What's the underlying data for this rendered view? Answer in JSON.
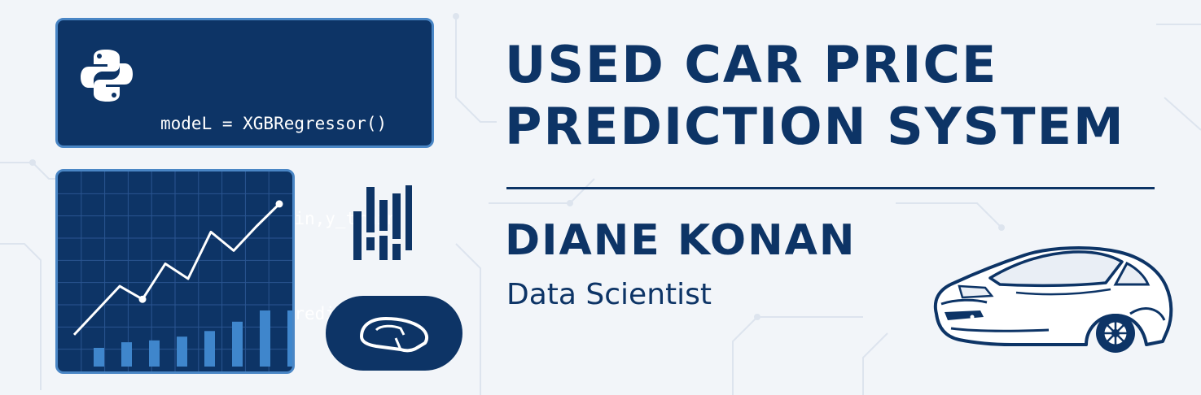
{
  "code": {
    "lines": [
      "modeL = XGBRegressor()",
      "xgb.fit(X_train,y_train",
      "y_pred =xgb.predict(X_t"
    ]
  },
  "title": {
    "line1": "USED CAR PRICE",
    "line2": "PREDICTION SYSTEM"
  },
  "author": {
    "name": "DIANE KONAN",
    "role": "Data Scientist"
  },
  "icons": [
    "python-logo-icon",
    "bar-chart-icon",
    "car-badge-icon",
    "car-icon",
    "line-chart-icon"
  ],
  "colors": {
    "navy": "#0d3466",
    "accent_blue": "#4a86c5",
    "background": "#f2f5f9",
    "python_blue": "#3776ab",
    "python_yellow": "#ffd43b"
  },
  "chart_data": {
    "type": "line",
    "line_values": [
      0.17,
      0.3,
      0.43,
      0.36,
      0.55,
      0.47,
      0.72,
      0.62,
      0.75,
      0.87
    ],
    "bar_values": [
      0.1,
      0.13,
      0.14,
      0.16,
      0.19,
      0.24,
      0.3,
      0.3
    ]
  }
}
